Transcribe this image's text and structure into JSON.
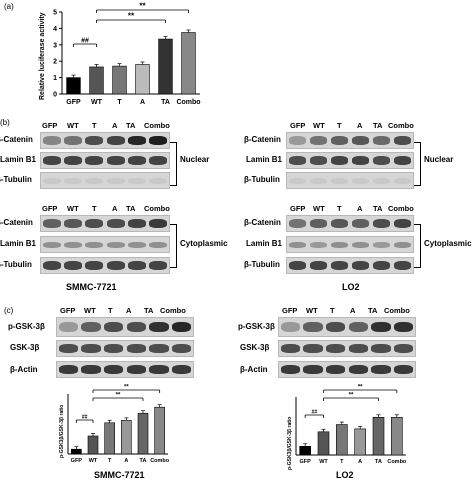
{
  "panels": {
    "a": "(a)",
    "b": "(b)",
    "c": "(c)"
  },
  "chart_a": {
    "ylabel": "Relative luciferase activity",
    "yticks": [
      "0",
      "1",
      "2",
      "3",
      "4",
      "5"
    ],
    "sig_1": "##",
    "sig_2": "**",
    "sig_3": "**"
  },
  "lanes": {
    "l1": "GFP",
    "l2": "WT",
    "l3": "T",
    "l4": "A",
    "l5": "TA",
    "l6": "Combo"
  },
  "blots": {
    "beta_catenin_left": "β-Catenin",
    "beta_catenin_right": "β-Catenin",
    "lamin_b1": "Lamin B1",
    "beta_tubulin_left": "β-Tubulin",
    "beta_tubulin_right": "β-Tubulin",
    "nuclear": "Nuclear",
    "cytoplasmic": "Cytoplasmic",
    "p_gsk": "p-GSK-3β",
    "gsk": "GSK-3β",
    "beta_actin": "β-Actin"
  },
  "cells": {
    "left": "SMMC-7721",
    "right": "LO2"
  },
  "chart_c": {
    "ylabel": "p-GSK3β/GSK-3β ratio",
    "sig_hash": "##",
    "sig_star": "**"
  },
  "chart_data": [
    {
      "type": "bar",
      "title": "",
      "categories": [
        "GFP",
        "WT",
        "T",
        "A",
        "TA",
        "Combo"
      ],
      "values": [
        1.0,
        1.65,
        1.7,
        1.8,
        3.35,
        3.75
      ],
      "ylabel": "Relative luciferase activity",
      "ylim": [
        0,
        5
      ],
      "colors": [
        "#000000",
        "#555555",
        "#777777",
        "#bbbbbb",
        "#333333",
        "#888888"
      ]
    },
    {
      "type": "bar",
      "title": "SMMC-7721",
      "categories": [
        "GFP",
        "WT",
        "T",
        "A",
        "TA",
        "Combo"
      ],
      "values": [
        0.4,
        1.5,
        2.6,
        2.8,
        3.4,
        3.9
      ],
      "ylabel": "p-GSK3β/GSK-3β ratio",
      "ylim": [
        0,
        5
      ]
    },
    {
      "type": "bar",
      "title": "LO2",
      "categories": [
        "GFP",
        "WT",
        "T",
        "A",
        "TA",
        "Combo"
      ],
      "values": [
        0.6,
        1.6,
        2.1,
        1.8,
        2.6,
        2.6
      ],
      "ylabel": "p-GSK3β/GSK-3β ratio",
      "ylim": [
        0,
        4
      ]
    }
  ]
}
